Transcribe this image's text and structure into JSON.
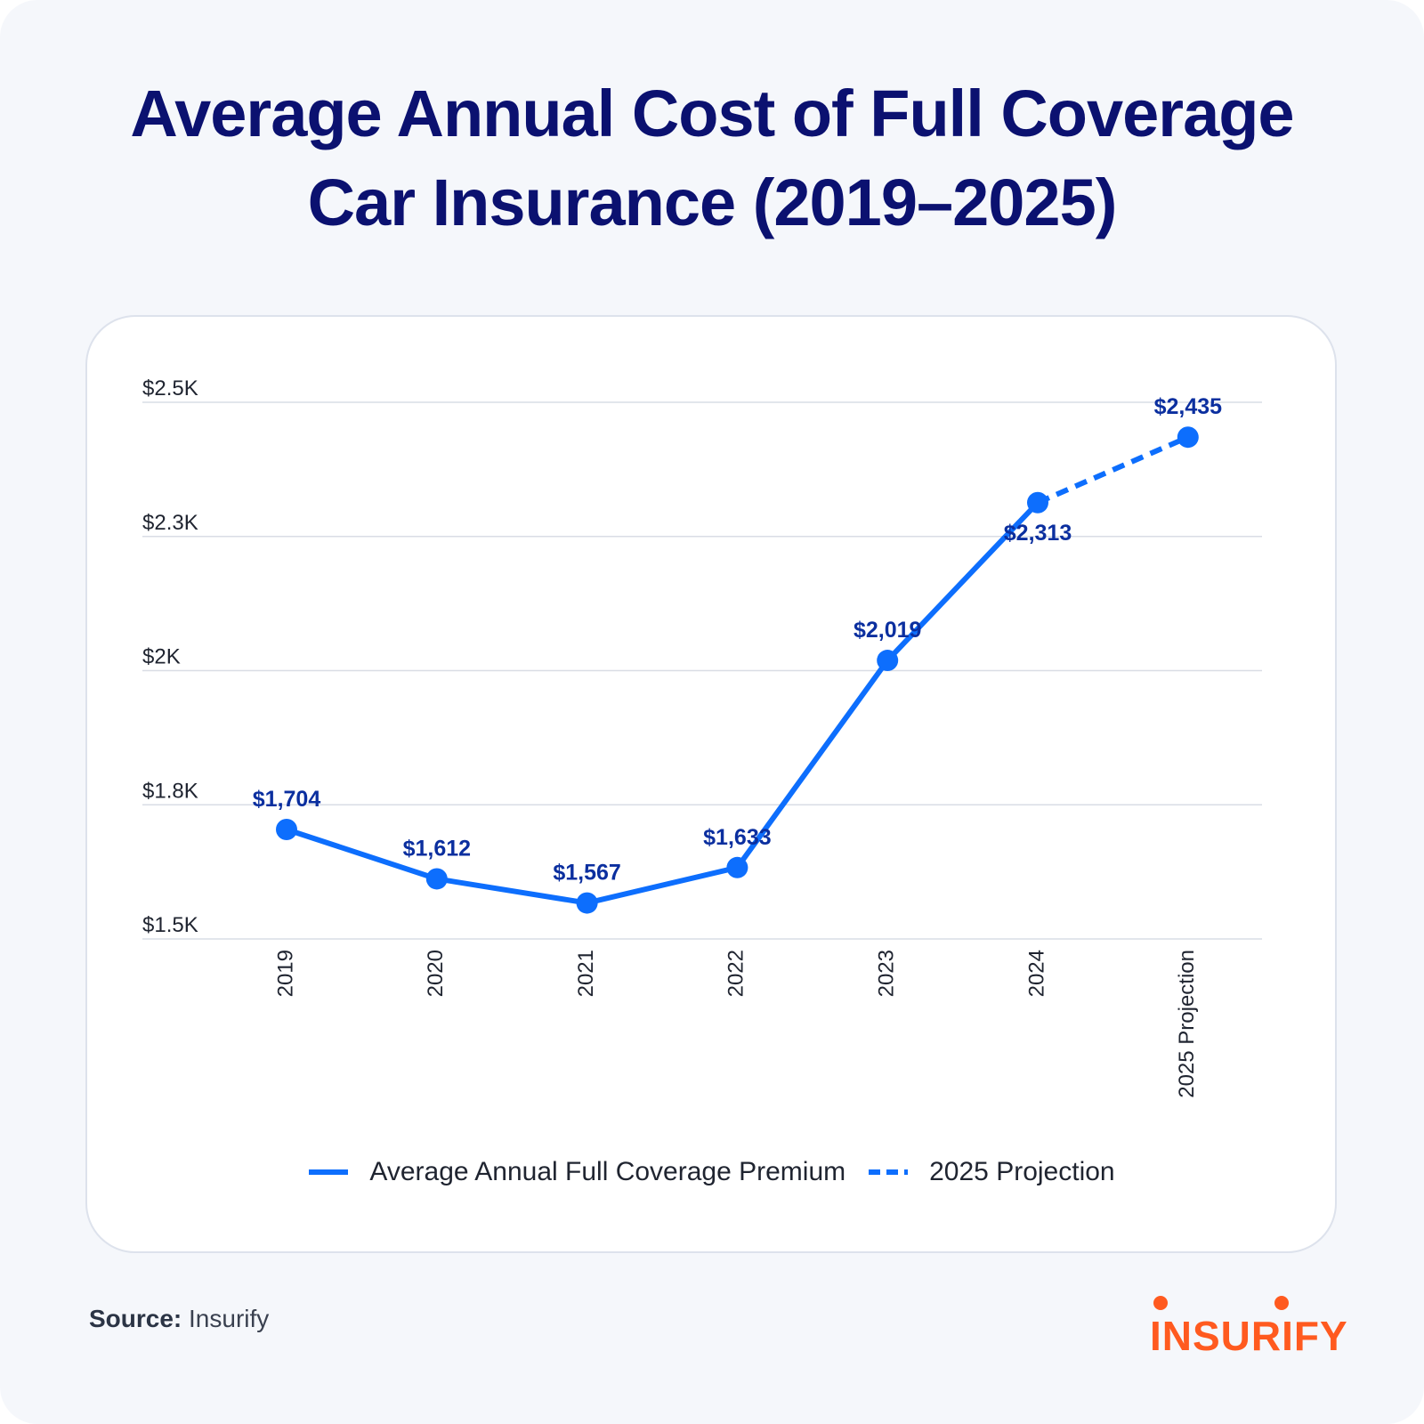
{
  "title_lines": [
    "Average Annual Cost of Full Coverage",
    "Car Insurance (2019–2025)"
  ],
  "source": {
    "label": "Source:",
    "value": "Insurify"
  },
  "logo": {
    "text": "INSURIFY",
    "color": "#ff5a1f"
  },
  "colors": {
    "title": "#0b1170",
    "line": "#0d6efd",
    "data_label": "#0b2f9f",
    "grid": "#d9dde5"
  },
  "chart_data": {
    "type": "line",
    "title": "Average Annual Cost of Full Coverage Car Insurance (2019–2025)",
    "categories": [
      "2019",
      "2020",
      "2021",
      "2022",
      "2023",
      "2024",
      "2025 Projection"
    ],
    "series": [
      {
        "name": "Average Annual Full Coverage Premium",
        "style": "solid",
        "x": [
          "2019",
          "2020",
          "2021",
          "2022",
          "2023",
          "2024"
        ],
        "values": [
          1704,
          1612,
          1567,
          1633,
          2019,
          2313
        ]
      },
      {
        "name": "2025 Projection",
        "style": "dashed",
        "x": [
          "2024",
          "2025 Projection"
        ],
        "values": [
          2313,
          2435
        ]
      }
    ],
    "data_labels": [
      "$1,704",
      "$1,612",
      "$1,567",
      "$1,633",
      "$2,019",
      "$2,313",
      "$2,435"
    ],
    "y_ticks": [
      1500,
      1750,
      2000,
      2250,
      2500
    ],
    "y_tick_labels": [
      "$1.5K",
      "$1.8K",
      "$2K",
      "$2.3K",
      "$2.5K"
    ],
    "ylim": [
      1500,
      2500
    ],
    "xlabel": "",
    "ylabel": "",
    "grid": true,
    "legend_position": "bottom-center"
  }
}
